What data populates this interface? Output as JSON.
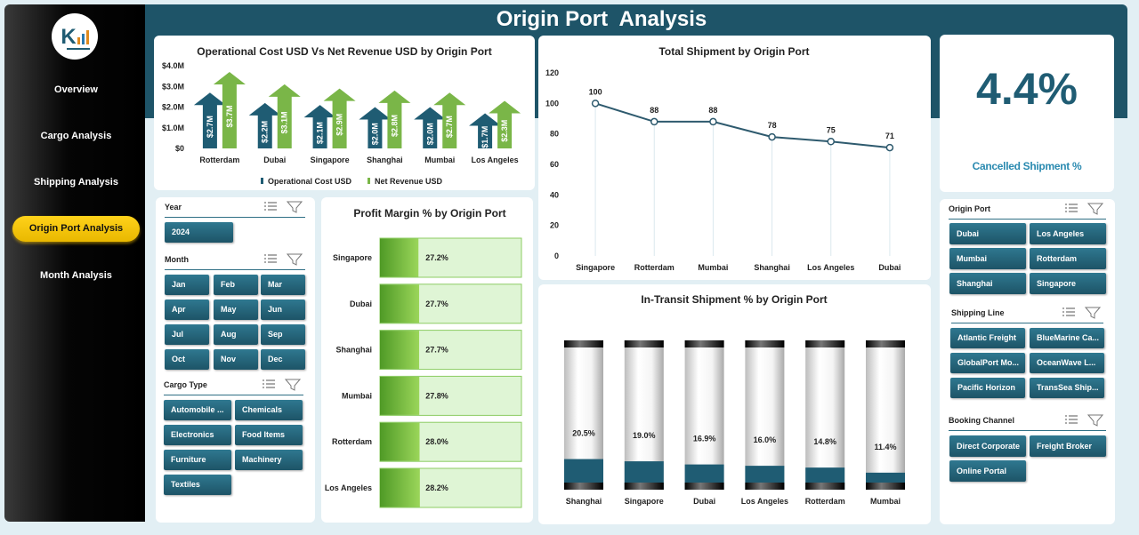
{
  "header": {
    "title": "Origin Port  Analysis"
  },
  "sidebar": {
    "items": [
      "Overview",
      "Cargo Analysis",
      "Shipping Analysis",
      "Origin Port  Analysis",
      "Month Analysis"
    ],
    "active": 3
  },
  "kpi": {
    "value": "4.4%",
    "label": "Cancelled Shipment %"
  },
  "slicers": [
    {
      "title": "Year",
      "items": [
        "2024"
      ]
    },
    {
      "title": "Month",
      "items": [
        "Jan",
        "Feb",
        "Mar",
        "Apr",
        "May",
        "Jun",
        "Jul",
        "Aug",
        "Sep",
        "Oct",
        "Nov",
        "Dec"
      ]
    },
    {
      "title": "Cargo Type",
      "items": [
        "Automobile ...",
        "Chemicals",
        "Electronics",
        "Food Items",
        "Furniture",
        "Machinery",
        "Textiles"
      ]
    },
    {
      "title": "Origin Port",
      "items": [
        "Dubai",
        "Los Angeles",
        "Mumbai",
        "Rotterdam",
        "Shanghai",
        "Singapore"
      ]
    },
    {
      "title": "Shipping Line",
      "items": [
        "Atlantic Freight",
        "BlueMarine Ca...",
        "GlobalPort Mo...",
        "OceanWave L...",
        "Pacific Horizon",
        "TransSea Ship..."
      ]
    },
    {
      "title": "Booking Channel",
      "items": [
        "Direct Corporate",
        "Freight Broker",
        "Online Portal"
      ]
    }
  ],
  "chart_data": [
    {
      "type": "bar",
      "title": "Operational Cost USD Vs Net Revenue USD by Origin Port",
      "categories": [
        "Rotterdam",
        "Dubai",
        "Singapore",
        "Shanghai",
        "Mumbai",
        "Los Angeles"
      ],
      "series": [
        {
          "name": "Operational Cost USD",
          "color": "#1f5c73",
          "values": [
            2700000,
            2200000,
            2100000,
            2000000,
            2000000,
            1700000
          ],
          "value_labels": [
            "$2.7M",
            "$2.2M",
            "$2.1M",
            "$2.0M",
            "$2.0M",
            "$1.7M"
          ]
        },
        {
          "name": "Net Revenue USD",
          "color": "#7ab648",
          "values": [
            3700000,
            3100000,
            2900000,
            2800000,
            2700000,
            2300000
          ],
          "value_labels": [
            "$3.7M",
            "$3.1M",
            "$2.9M",
            "$2.8M",
            "$2.7M",
            "$2.3M"
          ]
        }
      ],
      "ylim": [
        0,
        4000000
      ],
      "yticks": [
        {
          "value": 0,
          "label": "$0"
        },
        {
          "value": 1000000,
          "label": "$1.0M"
        },
        {
          "value": 2000000,
          "label": "$2.0M"
        },
        {
          "value": 3000000,
          "label": "$3.0M"
        },
        {
          "value": 4000000,
          "label": "$4.0M"
        }
      ],
      "legend": "bottom"
    },
    {
      "type": "line",
      "title": "Total Shipment by Origin Port",
      "categories": [
        "Singapore",
        "Rotterdam",
        "Mumbai",
        "Shanghai",
        "Los Angeles",
        "Dubai"
      ],
      "values": [
        100,
        88,
        88,
        78,
        75,
        71
      ],
      "color": "#2e5a6e",
      "ylim": [
        0,
        120
      ],
      "yticks": [
        0,
        20,
        40,
        60,
        80,
        100,
        120
      ]
    },
    {
      "type": "hbar",
      "title": "Profit Margin % by Origin Port",
      "categories": [
        "Singapore",
        "Dubai",
        "Shanghai",
        "Mumbai",
        "Rotterdam",
        "Los Angeles"
      ],
      "values": [
        27.2,
        27.7,
        27.7,
        27.8,
        28.0,
        28.2
      ],
      "value_labels": [
        "27.2%",
        "27.7%",
        "27.7%",
        "27.8%",
        "28.0%",
        "28.2%"
      ],
      "color": "#6cbf3a",
      "xlim": [
        0,
        100
      ]
    },
    {
      "type": "cylinder",
      "title": "In-Transit Shipment % by Origin Port",
      "categories": [
        "Shanghai",
        "Singapore",
        "Dubai",
        "Los Angeles",
        "Rotterdam",
        "Mumbai"
      ],
      "values": [
        20.5,
        19.0,
        16.9,
        16.0,
        14.8,
        11.4
      ],
      "value_labels": [
        "20.5%",
        "19.0%",
        "16.9%",
        "16.0%",
        "14.8%",
        "11.4%"
      ],
      "color": "#1f5c73",
      "ylim": [
        0,
        100
      ]
    }
  ]
}
